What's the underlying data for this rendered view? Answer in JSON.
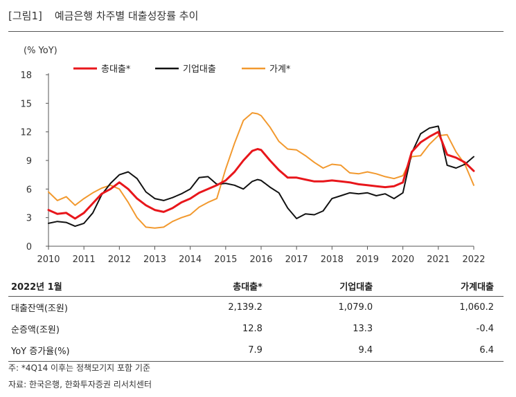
{
  "figure": {
    "label": "[그림1]",
    "title": "예금은행 차주별 대출성장률 추이"
  },
  "chart_data": {
    "type": "line",
    "yunit": "(% YoY)",
    "ylim": [
      0,
      18
    ],
    "yticks": [
      0,
      3,
      6,
      9,
      12,
      15,
      18
    ],
    "xlim": [
      2010,
      2022
    ],
    "xticks": [
      "2010",
      "2011",
      "2012",
      "2013",
      "2014",
      "2015",
      "2016",
      "2017",
      "2018",
      "2019",
      "2020",
      "2021",
      "2022"
    ],
    "legend_position": "top",
    "series": [
      {
        "name": "총대출*",
        "color": "#e8161b",
        "x": [
          2010.0,
          2010.25,
          2010.5,
          2010.75,
          2011.0,
          2011.25,
          2011.5,
          2011.75,
          2012.0,
          2012.25,
          2012.5,
          2012.75,
          2013.0,
          2013.25,
          2013.5,
          2013.75,
          2014.0,
          2014.25,
          2014.5,
          2014.75,
          2015.0,
          2015.25,
          2015.5,
          2015.75,
          2015.9,
          2016.0,
          2016.25,
          2016.5,
          2016.75,
          2017.0,
          2017.25,
          2017.5,
          2017.75,
          2018.0,
          2018.25,
          2018.5,
          2018.75,
          2019.0,
          2019.25,
          2019.5,
          2019.75,
          2020.0,
          2020.25,
          2020.5,
          2020.75,
          2021.0,
          2021.25,
          2021.5,
          2021.75,
          2022.0
        ],
        "values": [
          3.8,
          3.4,
          3.5,
          2.9,
          3.5,
          4.5,
          5.5,
          6.0,
          6.7,
          6.0,
          5.0,
          4.3,
          3.8,
          3.6,
          4.0,
          4.6,
          5.0,
          5.6,
          6.0,
          6.4,
          6.9,
          7.8,
          9.0,
          10.0,
          10.2,
          10.1,
          9.0,
          8.0,
          7.2,
          7.2,
          7.0,
          6.8,
          6.8,
          6.9,
          6.8,
          6.7,
          6.5,
          6.4,
          6.3,
          6.2,
          6.3,
          6.7,
          9.9,
          10.9,
          11.5,
          12.0,
          9.6,
          9.3,
          8.8,
          7.9
        ]
      },
      {
        "name": "기업대출",
        "color": "#111111",
        "x": [
          2010.0,
          2010.25,
          2010.5,
          2010.75,
          2011.0,
          2011.25,
          2011.5,
          2011.75,
          2012.0,
          2012.25,
          2012.5,
          2012.75,
          2013.0,
          2013.25,
          2013.5,
          2013.75,
          2014.0,
          2014.25,
          2014.5,
          2014.75,
          2015.0,
          2015.25,
          2015.5,
          2015.75,
          2015.9,
          2016.0,
          2016.25,
          2016.5,
          2016.75,
          2017.0,
          2017.25,
          2017.5,
          2017.75,
          2018.0,
          2018.25,
          2018.5,
          2018.75,
          2019.0,
          2019.25,
          2019.5,
          2019.75,
          2020.0,
          2020.25,
          2020.5,
          2020.75,
          2021.0,
          2021.25,
          2021.5,
          2021.75,
          2022.0
        ],
        "values": [
          2.4,
          2.6,
          2.5,
          2.1,
          2.4,
          3.5,
          5.4,
          6.6,
          7.5,
          7.8,
          7.1,
          5.7,
          5.0,
          4.8,
          5.1,
          5.5,
          6.0,
          7.2,
          7.3,
          6.5,
          6.6,
          6.4,
          6.0,
          6.8,
          7.0,
          6.9,
          6.2,
          5.6,
          4.0,
          2.9,
          3.4,
          3.3,
          3.7,
          5.0,
          5.3,
          5.6,
          5.5,
          5.6,
          5.3,
          5.5,
          5.0,
          5.6,
          9.8,
          11.8,
          12.4,
          12.6,
          8.5,
          8.2,
          8.6,
          9.4
        ]
      },
      {
        "name": "가계*",
        "color": "#f2992e",
        "x": [
          2010.0,
          2010.25,
          2010.5,
          2010.75,
          2011.0,
          2011.25,
          2011.5,
          2011.75,
          2012.0,
          2012.25,
          2012.5,
          2012.75,
          2013.0,
          2013.25,
          2013.5,
          2013.75,
          2014.0,
          2014.25,
          2014.5,
          2014.75,
          2015.0,
          2015.25,
          2015.5,
          2015.75,
          2015.9,
          2016.0,
          2016.25,
          2016.5,
          2016.75,
          2017.0,
          2017.25,
          2017.5,
          2017.75,
          2018.0,
          2018.25,
          2018.5,
          2018.75,
          2019.0,
          2019.25,
          2019.5,
          2019.75,
          2020.0,
          2020.25,
          2020.5,
          2020.75,
          2021.0,
          2021.25,
          2021.5,
          2021.75,
          2022.0
        ],
        "values": [
          5.7,
          4.8,
          5.2,
          4.3,
          5.0,
          5.6,
          6.1,
          6.4,
          6.0,
          4.6,
          3.0,
          2.0,
          1.9,
          2.0,
          2.6,
          3.0,
          3.3,
          4.1,
          4.6,
          5.0,
          8.1,
          10.8,
          13.2,
          14.0,
          13.9,
          13.7,
          12.5,
          11.0,
          10.2,
          10.1,
          9.5,
          8.8,
          8.2,
          8.6,
          8.5,
          7.7,
          7.6,
          7.8,
          7.6,
          7.3,
          7.1,
          7.4,
          9.4,
          9.5,
          10.7,
          11.6,
          11.7,
          9.9,
          8.6,
          6.4
        ]
      }
    ]
  },
  "table": {
    "header": [
      "2022년 1월",
      "총대출*",
      "기업대출",
      "가계대출"
    ],
    "rows": [
      [
        "대출잔액(조원)",
        "2,139.2",
        "1,079.0",
        "1,060.2"
      ],
      [
        "순증액(조원)",
        "12.8",
        "13.3",
        "-0.4"
      ],
      [
        "YoY 증가율(%)",
        "7.9",
        "9.4",
        "6.4"
      ]
    ]
  },
  "notes": {
    "footnote": "주: *4Q14 이후는 정책모기지 포함 기준",
    "source": "자료: 한국은행, 한화투자증권 리서치센터"
  }
}
